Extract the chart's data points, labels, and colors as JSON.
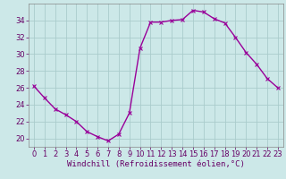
{
  "hours": [
    0,
    1,
    2,
    3,
    4,
    5,
    6,
    7,
    8,
    9,
    10,
    11,
    12,
    13,
    14,
    15,
    16,
    17,
    18,
    19,
    20,
    21,
    22,
    23
  ],
  "values": [
    26.2,
    24.8,
    23.5,
    22.8,
    22.0,
    20.8,
    20.2,
    19.7,
    20.5,
    23.0,
    30.7,
    33.8,
    33.8,
    34.0,
    34.1,
    35.2,
    35.0,
    34.2,
    33.7,
    32.0,
    30.2,
    28.8,
    27.1,
    26.0
  ],
  "line_color": "#990099",
  "marker": "x",
  "marker_size": 3,
  "bg_color": "#cce8e8",
  "grid_color": "#aacccc",
  "xlabel": "Windchill (Refroidissement éolien,°C)",
  "xlim": [
    -0.5,
    23.5
  ],
  "ylim": [
    19.0,
    36.0
  ],
  "yticks": [
    20,
    22,
    24,
    26,
    28,
    30,
    32,
    34
  ],
  "xticks": [
    0,
    1,
    2,
    3,
    4,
    5,
    6,
    7,
    8,
    9,
    10,
    11,
    12,
    13,
    14,
    15,
    16,
    17,
    18,
    19,
    20,
    21,
    22,
    23
  ],
  "xlabel_fontsize": 6.5,
  "tick_fontsize": 6.0,
  "tick_color": "#660066",
  "axis_color": "#888888",
  "linewidth": 1.0,
  "markeredgewidth": 0.8
}
